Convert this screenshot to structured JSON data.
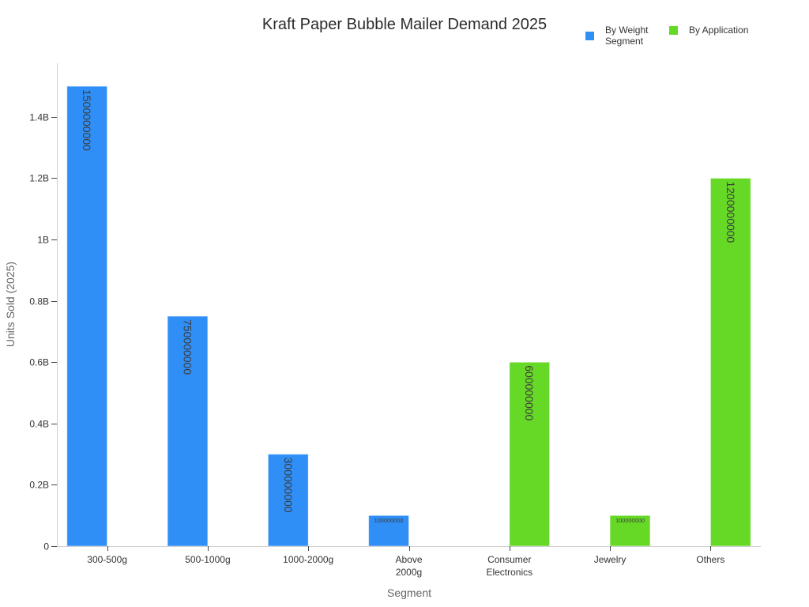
{
  "chart_data": {
    "type": "bar",
    "title": "Kraft Paper Bubble Mailer Demand 2025",
    "xlabel": "Segment",
    "ylabel": "Units Sold (2025)",
    "categories": [
      "300-500g",
      "500-1000g",
      "1000-2000g",
      "Above 2000g",
      "Consumer Electronics",
      "Jewelry",
      "Others"
    ],
    "series": [
      {
        "name": "By Weight Segment",
        "color": "#2f8ff7",
        "values": [
          1500000000,
          750000000,
          300000000,
          100000000,
          null,
          null,
          null
        ]
      },
      {
        "name": "By Application",
        "color": "#66d927",
        "values": [
          null,
          null,
          null,
          null,
          600000000,
          100000000,
          1200000000
        ]
      }
    ],
    "ylim": [
      0,
      1575000000
    ],
    "yticks": {
      "values": [
        0,
        200000000,
        400000000,
        600000000,
        800000000,
        1000000000,
        1200000000,
        1400000000
      ],
      "labels": [
        "0",
        "0.2B",
        "0.4B",
        "0.6B",
        "0.8B",
        "1B",
        "1.2B",
        "1.4B"
      ]
    },
    "grid": false,
    "legend_position": "top-right"
  }
}
